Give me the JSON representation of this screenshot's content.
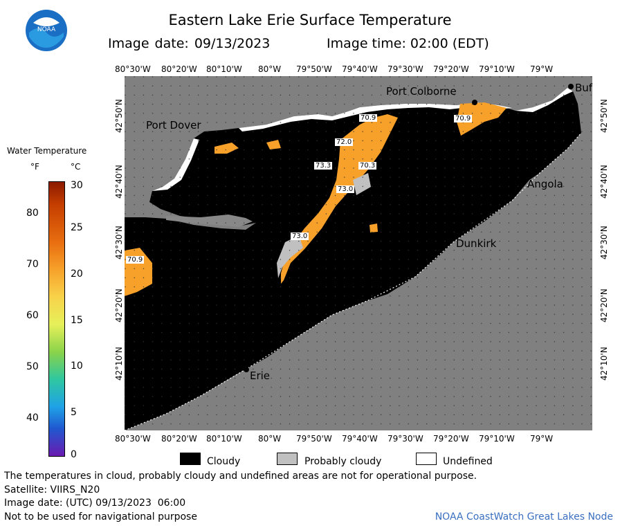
{
  "header": {
    "title": "Eastern Lake Erie Surface Temperature",
    "image_date_label": "Image date: 09/13/2023",
    "image_time_label": "Image time: 02:00 (EDT)",
    "logo_text": "NOAA"
  },
  "axes": {
    "lon_labels": [
      "80°30'W",
      "80°20'W",
      "80°10'W",
      "80°W",
      "79°50'W",
      "79°40'W",
      "79°30'W",
      "79°20'W",
      "79°10'W",
      "79°W"
    ],
    "lat_labels": [
      "42°50'N",
      "42°40'N",
      "42°30'N",
      "42°20'N",
      "42°10'N"
    ]
  },
  "map": {
    "places": {
      "port_colborne": "Port Colborne",
      "port_dover": "Port Dover",
      "buffalo": "Buf",
      "angola": "Angola",
      "dunkirk": "Dunkirk",
      "erie": "Erie"
    },
    "temperature_labels": [
      "70.9",
      "72.0",
      "70.9",
      "73.3",
      "70.3",
      "73.0",
      "73.0",
      "70.9"
    ],
    "colors": {
      "water_cloud": "#000000",
      "land": "#808080",
      "warm_water": "#f7a12a",
      "probably_cloudy": "#c0c0c0",
      "undefined": "#ffffff"
    }
  },
  "colorbar": {
    "title": "Water Temperature",
    "unit_f": "°F",
    "unit_c": "°C",
    "f_ticks": [
      "80",
      "70",
      "60",
      "50",
      "40"
    ],
    "c_ticks": [
      "30",
      "25",
      "20",
      "15",
      "10",
      "5",
      "0"
    ]
  },
  "legend_key": {
    "cloudy": "Cloudy",
    "probably_cloudy": "Probably cloudy",
    "undefined": "Undefined"
  },
  "footer": {
    "disclaimer": "The temperatures in cloud, probably cloudy and undefined areas are not for operational purpose.",
    "satellite": "Satellite: VIIRS_N20",
    "utc_date": "Image date: (UTC) 09/13/2023  06:00",
    "navigation": "Not to be used for navigational purpose",
    "credit": "NOAA CoastWatch Great Lakes Node"
  }
}
